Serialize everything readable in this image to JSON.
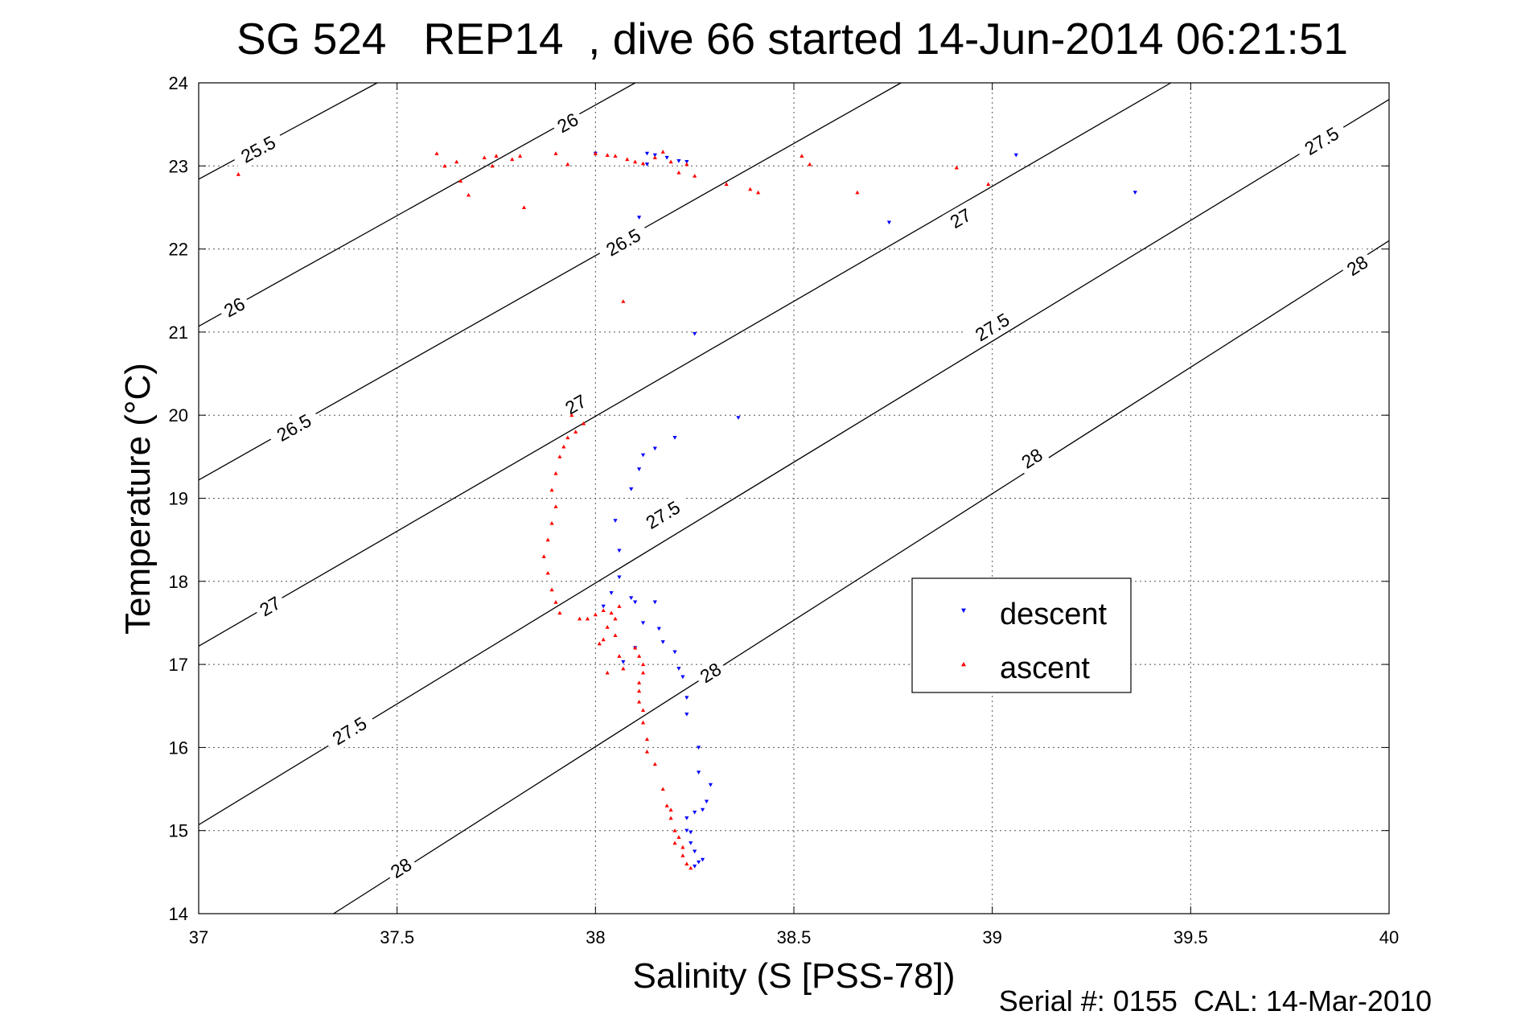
{
  "chart_data": {
    "type": "scatter",
    "title": "SG 524   REP14  , dive 66 started 14-Jun-2014 06:21:51",
    "xlabel": "Salinity (S [PSS-78])",
    "ylabel": "Temperature (°C)",
    "xlim": [
      37,
      40
    ],
    "ylim": [
      14,
      24
    ],
    "xticks": [
      "37",
      "37.5",
      "38",
      "38.5",
      "39",
      "39.5",
      "40"
    ],
    "yticks": [
      "14",
      "15",
      "16",
      "17",
      "18",
      "19",
      "20",
      "21",
      "22",
      "23",
      "24"
    ],
    "grid": true,
    "footer": "Serial #: 0155  CAL: 14-Mar-2010",
    "legend": {
      "placement": "center-right",
      "entries": [
        {
          "name": "descent",
          "color": "#0000ff",
          "marker": "triangle-down"
        },
        {
          "name": "ascent",
          "color": "#ff0000",
          "marker": "triangle-up"
        }
      ]
    },
    "contours": [
      {
        "level": "25.5",
        "points": [
          [
            37.0,
            22.84
          ],
          [
            37.45,
            24.0
          ]
        ],
        "labels": [
          {
            "text": "25.5",
            "at": [
              37.15,
              23.2
            ]
          }
        ]
      },
      {
        "level": "26",
        "points": [
          [
            37.0,
            21.07
          ],
          [
            38.1,
            24.0
          ]
        ],
        "labels": [
          {
            "text": "26",
            "at": [
              37.09,
              21.3
            ]
          },
          {
            "text": "26",
            "at": [
              37.93,
              23.52
            ]
          }
        ]
      },
      {
        "level": "26.5",
        "points": [
          [
            37.0,
            19.22
          ],
          [
            38.77,
            24.0
          ]
        ],
        "labels": [
          {
            "text": "26.5",
            "at": [
              37.24,
              19.85
            ]
          },
          {
            "text": "26.5",
            "at": [
              38.07,
              22.08
            ]
          }
        ]
      },
      {
        "level": "27",
        "points": [
          [
            37.0,
            17.22
          ],
          [
            39.45,
            24.0
          ]
        ],
        "labels": [
          {
            "text": "27",
            "at": [
              37.18,
              17.7
            ]
          },
          {
            "text": "27",
            "at": [
              37.95,
              20.13
            ]
          },
          {
            "text": "27",
            "at": [
              38.92,
              22.37
            ]
          }
        ]
      },
      {
        "level": "27.5",
        "points": [
          [
            37.0,
            15.07
          ],
          [
            40.0,
            23.8
          ]
        ],
        "labels": [
          {
            "text": "27.5",
            "at": [
              37.38,
              16.2
            ]
          },
          {
            "text": "27.5",
            "at": [
              38.17,
              18.8
            ]
          },
          {
            "text": "27.5",
            "at": [
              39.0,
              21.06
            ]
          },
          {
            "text": "27.5",
            "at": [
              39.83,
              23.3
            ]
          }
        ]
      },
      {
        "level": "28",
        "points": [
          [
            37.34,
            14.0
          ],
          [
            40.0,
            22.1
          ]
        ],
        "labels": [
          {
            "text": "28",
            "at": [
              37.51,
              14.55
            ]
          },
          {
            "text": "28",
            "at": [
              38.29,
              16.9
            ]
          },
          {
            "text": "28",
            "at": [
              39.1,
              19.48
            ]
          },
          {
            "text": "28",
            "at": [
              39.92,
              21.8
            ]
          }
        ]
      }
    ],
    "series": [
      {
        "name": "descent",
        "marker": "triangle-down",
        "color": "#0000ff",
        "points": [
          [
            38.0,
            23.15
          ],
          [
            38.13,
            23.15
          ],
          [
            38.15,
            23.13
          ],
          [
            38.18,
            23.1
          ],
          [
            38.21,
            23.06
          ],
          [
            38.23,
            23.05
          ],
          [
            38.13,
            23.02
          ],
          [
            38.11,
            22.38
          ],
          [
            38.74,
            22.32
          ],
          [
            39.06,
            23.13
          ],
          [
            39.36,
            22.68
          ],
          [
            38.25,
            20.98
          ],
          [
            38.36,
            19.97
          ],
          [
            38.2,
            19.73
          ],
          [
            38.15,
            19.6
          ],
          [
            38.12,
            19.52
          ],
          [
            38.11,
            19.35
          ],
          [
            38.09,
            19.11
          ],
          [
            38.05,
            18.73
          ],
          [
            38.06,
            18.37
          ],
          [
            38.06,
            18.05
          ],
          [
            38.04,
            17.86
          ],
          [
            38.02,
            17.7
          ],
          [
            38.09,
            17.8
          ],
          [
            38.1,
            17.75
          ],
          [
            38.15,
            17.75
          ],
          [
            38.12,
            17.5
          ],
          [
            38.16,
            17.43
          ],
          [
            38.1,
            17.2
          ],
          [
            38.17,
            17.27
          ],
          [
            38.2,
            17.15
          ],
          [
            38.21,
            16.95
          ],
          [
            38.07,
            17.03
          ],
          [
            38.22,
            16.85
          ],
          [
            38.23,
            16.6
          ],
          [
            38.23,
            16.4
          ],
          [
            38.26,
            16.0
          ],
          [
            38.26,
            15.7
          ],
          [
            38.29,
            15.55
          ],
          [
            38.28,
            15.35
          ],
          [
            38.27,
            15.25
          ],
          [
            38.25,
            15.22
          ],
          [
            38.23,
            15.15
          ],
          [
            38.23,
            15.0
          ],
          [
            38.24,
            14.98
          ],
          [
            38.24,
            14.85
          ],
          [
            38.25,
            14.75
          ],
          [
            38.26,
            14.62
          ],
          [
            38.27,
            14.65
          ],
          [
            38.25,
            14.57
          ]
        ]
      },
      {
        "name": "ascent",
        "marker": "triangle-up",
        "color": "#ff0000",
        "points": [
          [
            37.1,
            22.9
          ],
          [
            37.6,
            23.15
          ],
          [
            37.62,
            23.0
          ],
          [
            37.65,
            23.05
          ],
          [
            37.66,
            22.82
          ],
          [
            37.68,
            22.65
          ],
          [
            37.72,
            23.1
          ],
          [
            37.74,
            23.0
          ],
          [
            37.75,
            23.12
          ],
          [
            37.79,
            23.08
          ],
          [
            37.81,
            23.12
          ],
          [
            37.82,
            22.5
          ],
          [
            37.9,
            23.15
          ],
          [
            37.93,
            23.02
          ],
          [
            38.0,
            23.15
          ],
          [
            38.03,
            23.13
          ],
          [
            38.05,
            23.12
          ],
          [
            38.08,
            23.08
          ],
          [
            38.1,
            23.05
          ],
          [
            38.12,
            23.03
          ],
          [
            38.15,
            23.1
          ],
          [
            38.17,
            23.17
          ],
          [
            38.19,
            23.05
          ],
          [
            38.21,
            22.92
          ],
          [
            38.23,
            23.02
          ],
          [
            38.25,
            22.88
          ],
          [
            38.33,
            22.78
          ],
          [
            38.39,
            22.72
          ],
          [
            38.41,
            22.68
          ],
          [
            38.52,
            23.12
          ],
          [
            38.54,
            23.02
          ],
          [
            38.66,
            22.68
          ],
          [
            38.91,
            22.98
          ],
          [
            38.99,
            22.78
          ],
          [
            38.07,
            21.37
          ],
          [
            37.94,
            20.0
          ],
          [
            37.97,
            19.9
          ],
          [
            37.95,
            19.8
          ],
          [
            37.93,
            19.73
          ],
          [
            37.92,
            19.62
          ],
          [
            37.91,
            19.5
          ],
          [
            37.9,
            19.3
          ],
          [
            37.89,
            19.1
          ],
          [
            37.9,
            18.9
          ],
          [
            37.89,
            18.7
          ],
          [
            37.88,
            18.5
          ],
          [
            37.87,
            18.3
          ],
          [
            37.88,
            18.1
          ],
          [
            37.89,
            17.9
          ],
          [
            37.9,
            17.75
          ],
          [
            37.91,
            17.62
          ],
          [
            37.96,
            17.55
          ],
          [
            37.98,
            17.55
          ],
          [
            38.0,
            17.6
          ],
          [
            38.02,
            17.65
          ],
          [
            38.04,
            17.62
          ],
          [
            38.06,
            17.7
          ],
          [
            38.05,
            17.55
          ],
          [
            38.03,
            17.45
          ],
          [
            38.05,
            17.35
          ],
          [
            38.02,
            17.3
          ],
          [
            38.01,
            17.25
          ],
          [
            38.06,
            17.1
          ],
          [
            38.03,
            16.9
          ],
          [
            38.07,
            16.95
          ],
          [
            38.1,
            17.2
          ],
          [
            38.11,
            17.1
          ],
          [
            38.12,
            17.0
          ],
          [
            38.12,
            16.9
          ],
          [
            38.11,
            16.78
          ],
          [
            38.11,
            16.68
          ],
          [
            38.11,
            16.55
          ],
          [
            38.12,
            16.45
          ],
          [
            38.12,
            16.3
          ],
          [
            38.13,
            16.1
          ],
          [
            38.13,
            15.95
          ],
          [
            38.15,
            15.8
          ],
          [
            38.17,
            15.5
          ],
          [
            38.18,
            15.3
          ],
          [
            38.19,
            15.25
          ],
          [
            38.19,
            15.15
          ],
          [
            38.2,
            15.0
          ],
          [
            38.21,
            14.92
          ],
          [
            38.2,
            14.85
          ],
          [
            38.22,
            14.8
          ],
          [
            38.22,
            14.7
          ],
          [
            38.23,
            14.6
          ],
          [
            38.24,
            14.55
          ]
        ]
      }
    ]
  }
}
